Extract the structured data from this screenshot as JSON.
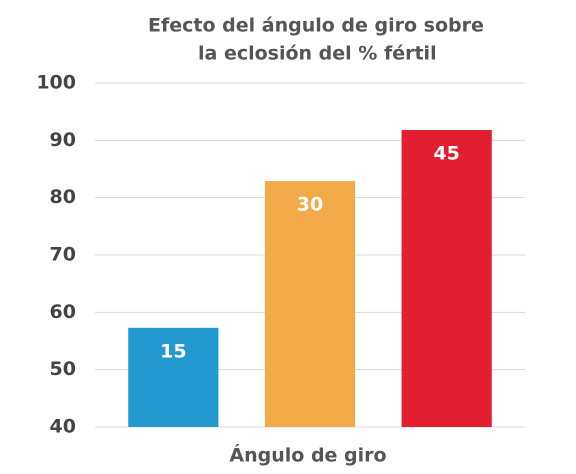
{
  "chart_data": {
    "type": "bar",
    "title": [
      "Efecto del ángulo de giro sobre",
      "la eclosión del % fértil"
    ],
    "xlabel": "Ángulo de giro",
    "categories": [
      "15",
      "30",
      "45"
    ],
    "values": [
      57.3,
      82.9,
      91.8
    ],
    "colors": [
      "#2499d0",
      "#f2aa48",
      "#e21f30"
    ],
    "ylim": [
      40,
      100
    ],
    "yticks": [
      40,
      50,
      60,
      70,
      80,
      90,
      100
    ],
    "grid": true
  }
}
